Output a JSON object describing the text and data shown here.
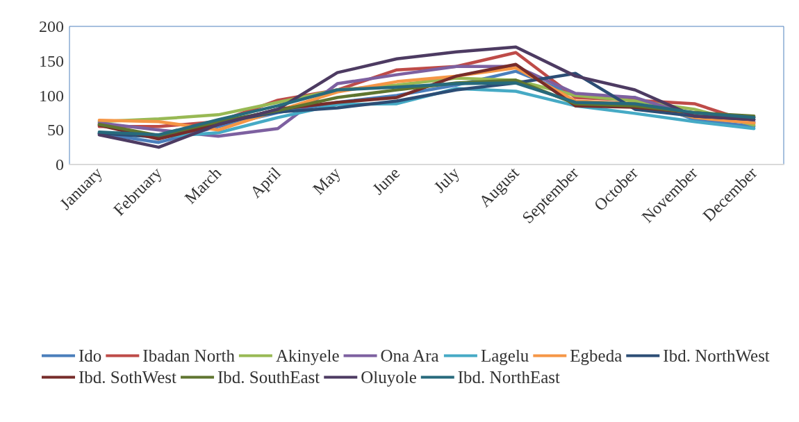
{
  "chart_data": {
    "type": "line",
    "categories": [
      "January",
      "February",
      "March",
      "April",
      "May",
      "June",
      "July",
      "August",
      "September",
      "October",
      "November",
      "December"
    ],
    "ylim": [
      0,
      200
    ],
    "yticks": [
      0,
      50,
      100,
      150,
      200
    ],
    "grid": false,
    "legend": "bottom",
    "marker": "none",
    "line_style": "solid",
    "series": [
      {
        "name": "Ido",
        "color": "#4a7ebb",
        "values": [
          45,
          32,
          55,
          75,
          90,
          100,
          115,
          135,
          100,
          97,
          65,
          55
        ]
      },
      {
        "name": "Ibadan North",
        "color": "#be4b48",
        "values": [
          55,
          55,
          62,
          93,
          108,
          137,
          142,
          162,
          97,
          93,
          88,
          60
        ]
      },
      {
        "name": "Akinyele",
        "color": "#98b954",
        "values": [
          62,
          66,
          72,
          90,
          108,
          115,
          125,
          122,
          100,
          92,
          80,
          57
        ]
      },
      {
        "name": "Ona Ara",
        "color": "#7d60a0",
        "values": [
          60,
          50,
          41,
          52,
          117,
          130,
          142,
          142,
          103,
          97,
          70,
          62
        ]
      },
      {
        "name": "Lagelu",
        "color": "#46aac5",
        "values": [
          45,
          40,
          46,
          68,
          87,
          88,
          110,
          106,
          85,
          74,
          62,
          52
        ]
      },
      {
        "name": "Egbeda",
        "color": "#f59646",
        "values": [
          64,
          62,
          50,
          78,
          105,
          120,
          128,
          140,
          92,
          88,
          68,
          60
        ]
      },
      {
        "name": "Ibd. NorthWest",
        "color": "#2c4d75",
        "values": [
          45,
          40,
          60,
          76,
          82,
          92,
          108,
          118,
          132,
          80,
          70,
          65
        ]
      },
      {
        "name": "Ibd. SothWest",
        "color": "#772c2a",
        "values": [
          57,
          37,
          58,
          80,
          90,
          97,
          128,
          145,
          85,
          83,
          75,
          68
        ]
      },
      {
        "name": "Ibd. SouthEast",
        "color": "#5f7530",
        "values": [
          58,
          42,
          62,
          78,
          97,
          108,
          118,
          122,
          88,
          85,
          75,
          70
        ]
      },
      {
        "name": "Oluyole",
        "color": "#4d3b62",
        "values": [
          43,
          25,
          58,
          80,
          133,
          153,
          163,
          170,
          128,
          108,
          70,
          65
        ]
      },
      {
        "name": "Ibd. NorthEast",
        "color": "#276a7c",
        "values": [
          47,
          43,
          65,
          85,
          108,
          112,
          117,
          118,
          90,
          88,
          75,
          68
        ]
      }
    ]
  }
}
